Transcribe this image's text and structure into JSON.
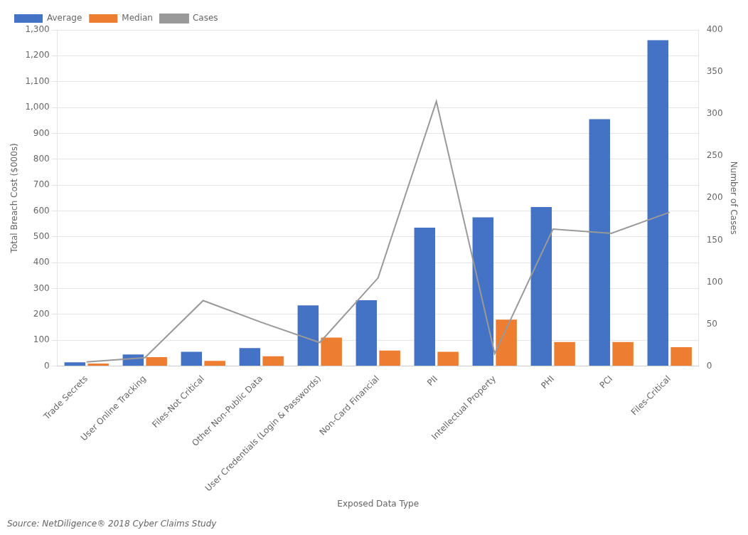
{
  "chart_data": {
    "type": "bar",
    "categories": [
      "Trade Secrets",
      "User Online Tracking",
      "Files-Not Critical",
      "Other Non-Public Data",
      "User Credentials (Login & Passwords)",
      "Non-Card Financial",
      "PII",
      "Intellectual Property",
      "PHI",
      "PCI",
      "Files-Critical"
    ],
    "series": [
      {
        "name": "Average",
        "color": "#4472C4",
        "values": [
          15,
          45,
          55,
          70,
          235,
          255,
          535,
          575,
          615,
          955,
          1260
        ]
      },
      {
        "name": "Median",
        "color": "#ED7D31",
        "values": [
          10,
          35,
          20,
          38,
          110,
          60,
          55,
          180,
          93,
          93,
          73
        ]
      },
      {
        "name": "Cases",
        "color": "#999999",
        "type": "line",
        "axis": "y2",
        "marker": "none",
        "values": [
          5,
          10,
          78,
          52,
          28,
          105,
          315,
          15,
          163,
          158,
          183
        ]
      }
    ],
    "xlabel": "Exposed Data Type",
    "ylabel": "Total Breach Cost ($000s)",
    "y2label": "Number of Cases",
    "ylim": [
      0,
      1300
    ],
    "yticks": [
      0,
      100,
      200,
      300,
      400,
      500,
      600,
      700,
      800,
      900,
      {
        "value": 1000,
        "label": "1,000"
      },
      {
        "value": 1100,
        "label": "1,100"
      },
      {
        "value": 1200,
        "label": "1,200"
      },
      {
        "value": 1300,
        "label": "1,300"
      }
    ],
    "y2lim": [
      0,
      400
    ],
    "y2ticks": [
      0,
      50,
      100,
      150,
      200,
      250,
      300,
      350,
      400
    ],
    "grid": true,
    "legend": "upper left",
    "annotation": "Source: NetDiligence® 2018 Cyber Claims Study"
  }
}
